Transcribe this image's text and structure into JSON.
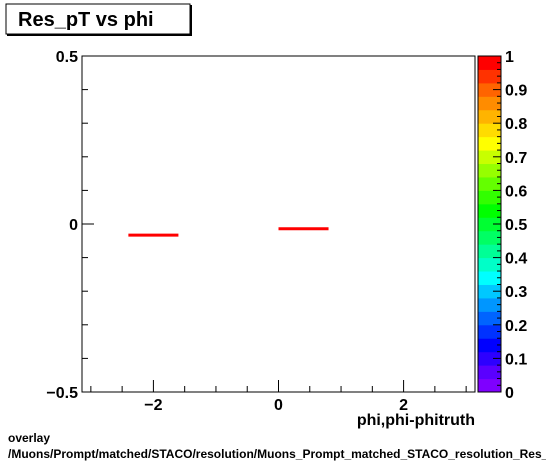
{
  "chart_data": {
    "type": "scatter",
    "title": "Res_pT vs phi",
    "xlabel": "phi,phi-phitruth",
    "ylabel": "",
    "xlim": [
      -3.1416,
      3.1416
    ],
    "ylim": [
      -0.5,
      0.5
    ],
    "x_ticks": [
      {
        "value": -2,
        "label": "−2"
      },
      {
        "value": 0,
        "label": "0"
      },
      {
        "value": 2,
        "label": "2"
      }
    ],
    "y_ticks": [
      {
        "value": -0.5,
        "label": "−0.5"
      },
      {
        "value": 0,
        "label": "0"
      },
      {
        "value": 0.5,
        "label": "0.5"
      }
    ],
    "grid": false,
    "series": [
      {
        "color": "#ff0000",
        "points": [
          {
            "x_low": -2.4,
            "x_high": -1.6,
            "y": -0.033
          },
          {
            "x_low": 0.0,
            "x_high": 0.8,
            "y": -0.014
          }
        ]
      }
    ],
    "colorbar": {
      "range": [
        0,
        1
      ],
      "tick_labels": [
        "0",
        "0.1",
        "0.2",
        "0.3",
        "0.4",
        "0.5",
        "0.6",
        "0.7",
        "0.8",
        "0.9",
        "1"
      ],
      "colors": [
        "#7f00ff",
        "#5a00ff",
        "#2d00ff",
        "#0000ff",
        "#0032ff",
        "#0064ff",
        "#0096ff",
        "#00c8ff",
        "#00ffff",
        "#00ffc8",
        "#00ff96",
        "#00ff64",
        "#00ff32",
        "#00ff00",
        "#32ff00",
        "#64ff00",
        "#96ff00",
        "#c8ff00",
        "#ffff00",
        "#ffdc00",
        "#ffb400",
        "#ff8c00",
        "#ff6400",
        "#ff3200",
        "#ff0000"
      ]
    }
  },
  "footer": {
    "line1": "overlay",
    "line2": "/Muons/Prompt/matched/STACO/resolution/Muons_Prompt_matched_STACO_resolution_Res_pT_vs_phi"
  }
}
